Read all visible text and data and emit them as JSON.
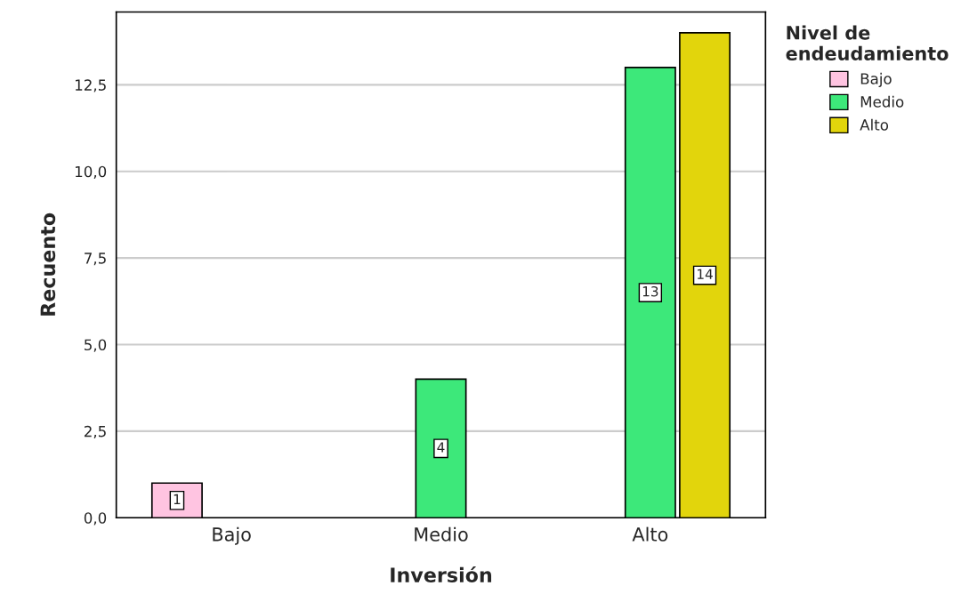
{
  "chart_data": {
    "type": "bar",
    "xlabel": "Inversión",
    "ylabel": "Recuento",
    "legend_title": "Nivel de\nendeudamiento",
    "categories": [
      "Bajo",
      "Medio",
      "Alto"
    ],
    "series": [
      {
        "name": "Bajo",
        "color": "#ffc4e1",
        "values": [
          1,
          null,
          null
        ]
      },
      {
        "name": "Medio",
        "color": "#3de87a",
        "values": [
          null,
          4,
          13
        ]
      },
      {
        "name": "Alto",
        "color": "#e2d50c",
        "values": [
          null,
          null,
          14
        ]
      }
    ],
    "ylim": [
      0,
      14.6
    ],
    "yticks": [
      {
        "value": 0,
        "label": "0,0"
      },
      {
        "value": 2.5,
        "label": "2,5"
      },
      {
        "value": 5,
        "label": "5,0"
      },
      {
        "value": 7.5,
        "label": "7,5"
      },
      {
        "value": 10,
        "label": "10,0"
      },
      {
        "value": 12.5,
        "label": "12,5"
      }
    ],
    "grid": "y",
    "legend": "top right",
    "data_labels": true
  }
}
